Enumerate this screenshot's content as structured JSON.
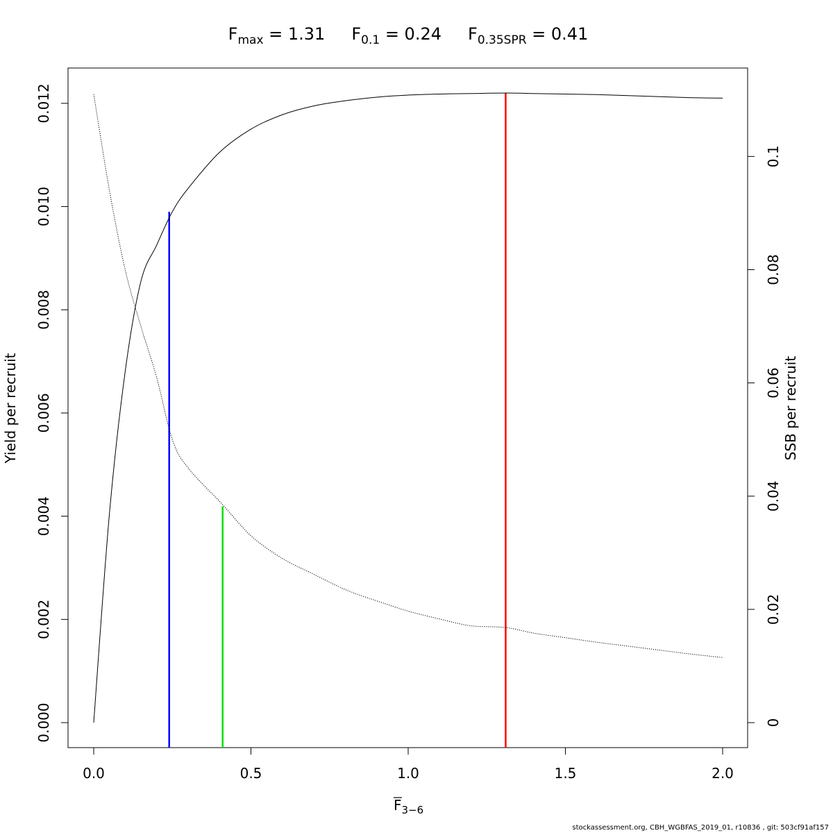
{
  "chart_data": {
    "type": "line",
    "title_parts": {
      "fmax_base": "F",
      "fmax_sub": "max",
      "fmax_value": " = 1.31",
      "f01_base": "F",
      "f01_sub": "0.1",
      "f01_value": " = 0.24",
      "fspr_base": "F",
      "fspr_sub": "0.35SPR",
      "fspr_value": " = 0.41"
    },
    "xlabel_base": "F",
    "xlabel_sub": "3−6",
    "ylabel": "Yield per recruit",
    "y2label": "SSB per recruit",
    "xlim": [
      0,
      2
    ],
    "ylim": [
      0,
      0.0122
    ],
    "y2lim": [
      0,
      0.1112
    ],
    "x_ticks": [
      0.0,
      0.5,
      1.0,
      1.5,
      2.0
    ],
    "x_tick_labels": [
      "0.0",
      "0.5",
      "1.0",
      "1.5",
      "2.0"
    ],
    "y_ticks": [
      0.0,
      0.002,
      0.004,
      0.006,
      0.008,
      0.01,
      0.012
    ],
    "y_tick_labels": [
      "0.000",
      "0.002",
      "0.004",
      "0.006",
      "0.008",
      "0.010",
      "0.012"
    ],
    "y2_ticks": [
      0,
      0.02,
      0.04,
      0.06,
      0.08,
      0.1
    ],
    "y2_tick_labels": [
      "0",
      "0.02",
      "0.04",
      "0.06",
      "0.08",
      "0.1"
    ],
    "series": [
      {
        "role": "yield",
        "axis": "left",
        "style": "solid",
        "color": "#000000",
        "x": [
          0,
          0.05,
          0.1,
          0.15,
          0.2,
          0.25,
          0.3,
          0.4,
          0.5,
          0.6,
          0.7,
          0.8,
          0.9,
          1.0,
          1.1,
          1.2,
          1.31,
          1.4,
          1.5,
          1.6,
          1.7,
          1.8,
          1.9,
          2.0
        ],
        "y": [
          0,
          0.00405,
          0.0068,
          0.00855,
          0.00925,
          0.0099,
          0.01035,
          0.01105,
          0.0115,
          0.01178,
          0.01195,
          0.01205,
          0.01212,
          0.01216,
          0.01218,
          0.01219,
          0.0122,
          0.01219,
          0.01218,
          0.01217,
          0.01215,
          0.01213,
          0.01211,
          0.0121
        ]
      },
      {
        "role": "ssb",
        "axis": "right",
        "style": "dotted",
        "color": "#000000",
        "x": [
          0,
          0.05,
          0.1,
          0.15,
          0.2,
          0.25,
          0.3,
          0.41,
          0.5,
          0.6,
          0.7,
          0.8,
          0.9,
          1.0,
          1.1,
          1.2,
          1.31,
          1.4,
          1.5,
          1.6,
          1.7,
          1.8,
          1.9,
          2.0
        ],
        "y": [
          0.111,
          0.094,
          0.08,
          0.07,
          0.061,
          0.05,
          0.045,
          0.0385,
          0.033,
          0.029,
          0.0262,
          0.0235,
          0.0215,
          0.0197,
          0.0183,
          0.0171,
          0.0168,
          0.0158,
          0.015,
          0.0142,
          0.0135,
          0.0128,
          0.0121,
          0.0115
        ]
      }
    ],
    "reference_lines": [
      {
        "label": "F0.1",
        "x": 0.24,
        "axis": "left",
        "y_top": 0.0099,
        "color": "#0000ff"
      },
      {
        "label": "F0.35SPR",
        "x": 0.41,
        "axis": "right",
        "y_top": 0.0382,
        "color": "#00dd00"
      },
      {
        "label": "Fmax",
        "x": 1.31,
        "axis": "left",
        "y_top": 0.0122,
        "color": "#ff0000"
      }
    ]
  },
  "footer": "stockassessment.org, CBH_WGBFAS_2019_01, r10836 , git: 503cf91af157"
}
